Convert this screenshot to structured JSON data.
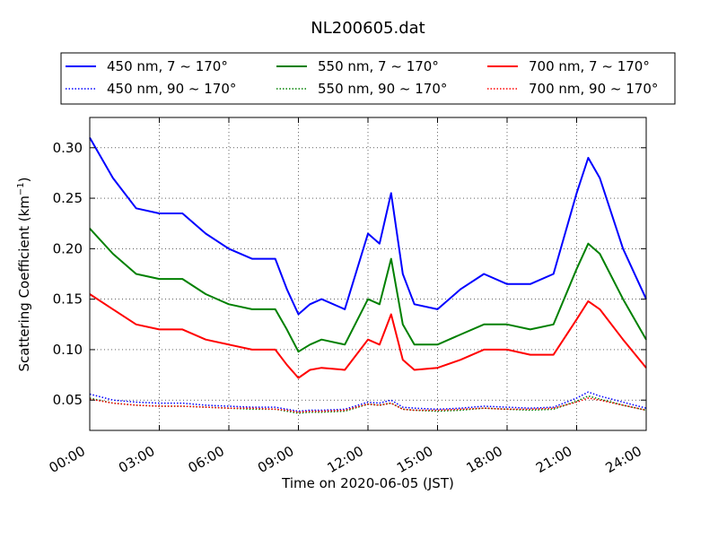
{
  "chart_data": {
    "type": "line",
    "title": "NL200605.dat",
    "xlabel": "Time on 2020-06-05 (JST)",
    "ylabel_main": "Scattering Coefficient (km",
    "ylabel_sup": "−1",
    "ylabel_close": ")",
    "x_unit": "hours (JST)",
    "xlim": [
      0,
      24
    ],
    "ylim": [
      0.02,
      0.33
    ],
    "x_ticks": [
      0,
      3,
      6,
      9,
      12,
      15,
      18,
      21,
      24
    ],
    "x_tick_labels": [
      "00:00",
      "03:00",
      "06:00",
      "09:00",
      "12:00",
      "15:00",
      "18:00",
      "21:00",
      "24:00"
    ],
    "y_ticks": [
      0.05,
      0.1,
      0.15,
      0.2,
      0.25,
      0.3
    ],
    "y_tick_labels": [
      "0.05",
      "0.10",
      "0.15",
      "0.20",
      "0.25",
      "0.30"
    ],
    "grid": true,
    "grid_style": "dotted",
    "legend_position": "top, above plot, 3 columns",
    "x": [
      0,
      1,
      2,
      3,
      4,
      5,
      6,
      7,
      8,
      8.5,
      9,
      9.5,
      10,
      11,
      12,
      12.5,
      13,
      13.5,
      14,
      15,
      16,
      17,
      18,
      19,
      20,
      21,
      21.5,
      22,
      23,
      24
    ],
    "series": [
      {
        "name": "450 nm, 7 ~ 170°",
        "color": "#0000ff",
        "style": "solid",
        "values": [
          0.31,
          0.27,
          0.24,
          0.235,
          0.235,
          0.215,
          0.2,
          0.19,
          0.19,
          0.16,
          0.135,
          0.145,
          0.15,
          0.14,
          0.215,
          0.205,
          0.255,
          0.175,
          0.145,
          0.14,
          0.16,
          0.175,
          0.165,
          0.165,
          0.175,
          0.255,
          0.29,
          0.27,
          0.2,
          0.15
        ]
      },
      {
        "name": "550 nm, 7 ~ 170°",
        "color": "#008000",
        "style": "solid",
        "values": [
          0.22,
          0.195,
          0.175,
          0.17,
          0.17,
          0.155,
          0.145,
          0.14,
          0.14,
          0.12,
          0.098,
          0.105,
          0.11,
          0.105,
          0.15,
          0.145,
          0.19,
          0.125,
          0.105,
          0.105,
          0.115,
          0.125,
          0.125,
          0.12,
          0.125,
          0.18,
          0.205,
          0.195,
          0.15,
          0.11
        ]
      },
      {
        "name": "700 nm, 7 ~ 170°",
        "color": "#ff0000",
        "style": "solid",
        "values": [
          0.155,
          0.14,
          0.125,
          0.12,
          0.12,
          0.11,
          0.105,
          0.1,
          0.1,
          0.085,
          0.072,
          0.08,
          0.082,
          0.08,
          0.11,
          0.105,
          0.135,
          0.09,
          0.08,
          0.082,
          0.09,
          0.1,
          0.1,
          0.095,
          0.095,
          0.13,
          0.148,
          0.14,
          0.11,
          0.082
        ]
      },
      {
        "name": "450 nm, 90 ~ 170°",
        "color": "#0000ff",
        "style": "dotted",
        "values": [
          0.056,
          0.05,
          0.048,
          0.047,
          0.047,
          0.045,
          0.044,
          0.043,
          0.043,
          0.041,
          0.039,
          0.04,
          0.04,
          0.041,
          0.048,
          0.047,
          0.05,
          0.043,
          0.042,
          0.041,
          0.042,
          0.044,
          0.043,
          0.042,
          0.043,
          0.052,
          0.058,
          0.054,
          0.048,
          0.042
        ]
      },
      {
        "name": "550 nm, 90 ~ 170°",
        "color": "#008000",
        "style": "dotted",
        "values": [
          0.052,
          0.047,
          0.045,
          0.044,
          0.044,
          0.043,
          0.042,
          0.041,
          0.041,
          0.039,
          0.037,
          0.038,
          0.038,
          0.039,
          0.046,
          0.045,
          0.047,
          0.041,
          0.04,
          0.039,
          0.04,
          0.042,
          0.041,
          0.04,
          0.041,
          0.049,
          0.054,
          0.051,
          0.045,
          0.04
        ]
      },
      {
        "name": "700 nm, 90 ~ 170°",
        "color": "#ff0000",
        "style": "dotted",
        "values": [
          0.051,
          0.047,
          0.045,
          0.044,
          0.044,
          0.043,
          0.042,
          0.042,
          0.041,
          0.04,
          0.038,
          0.039,
          0.039,
          0.04,
          0.046,
          0.045,
          0.047,
          0.041,
          0.04,
          0.04,
          0.041,
          0.042,
          0.041,
          0.041,
          0.042,
          0.048,
          0.052,
          0.05,
          0.045,
          0.04
        ]
      }
    ]
  }
}
